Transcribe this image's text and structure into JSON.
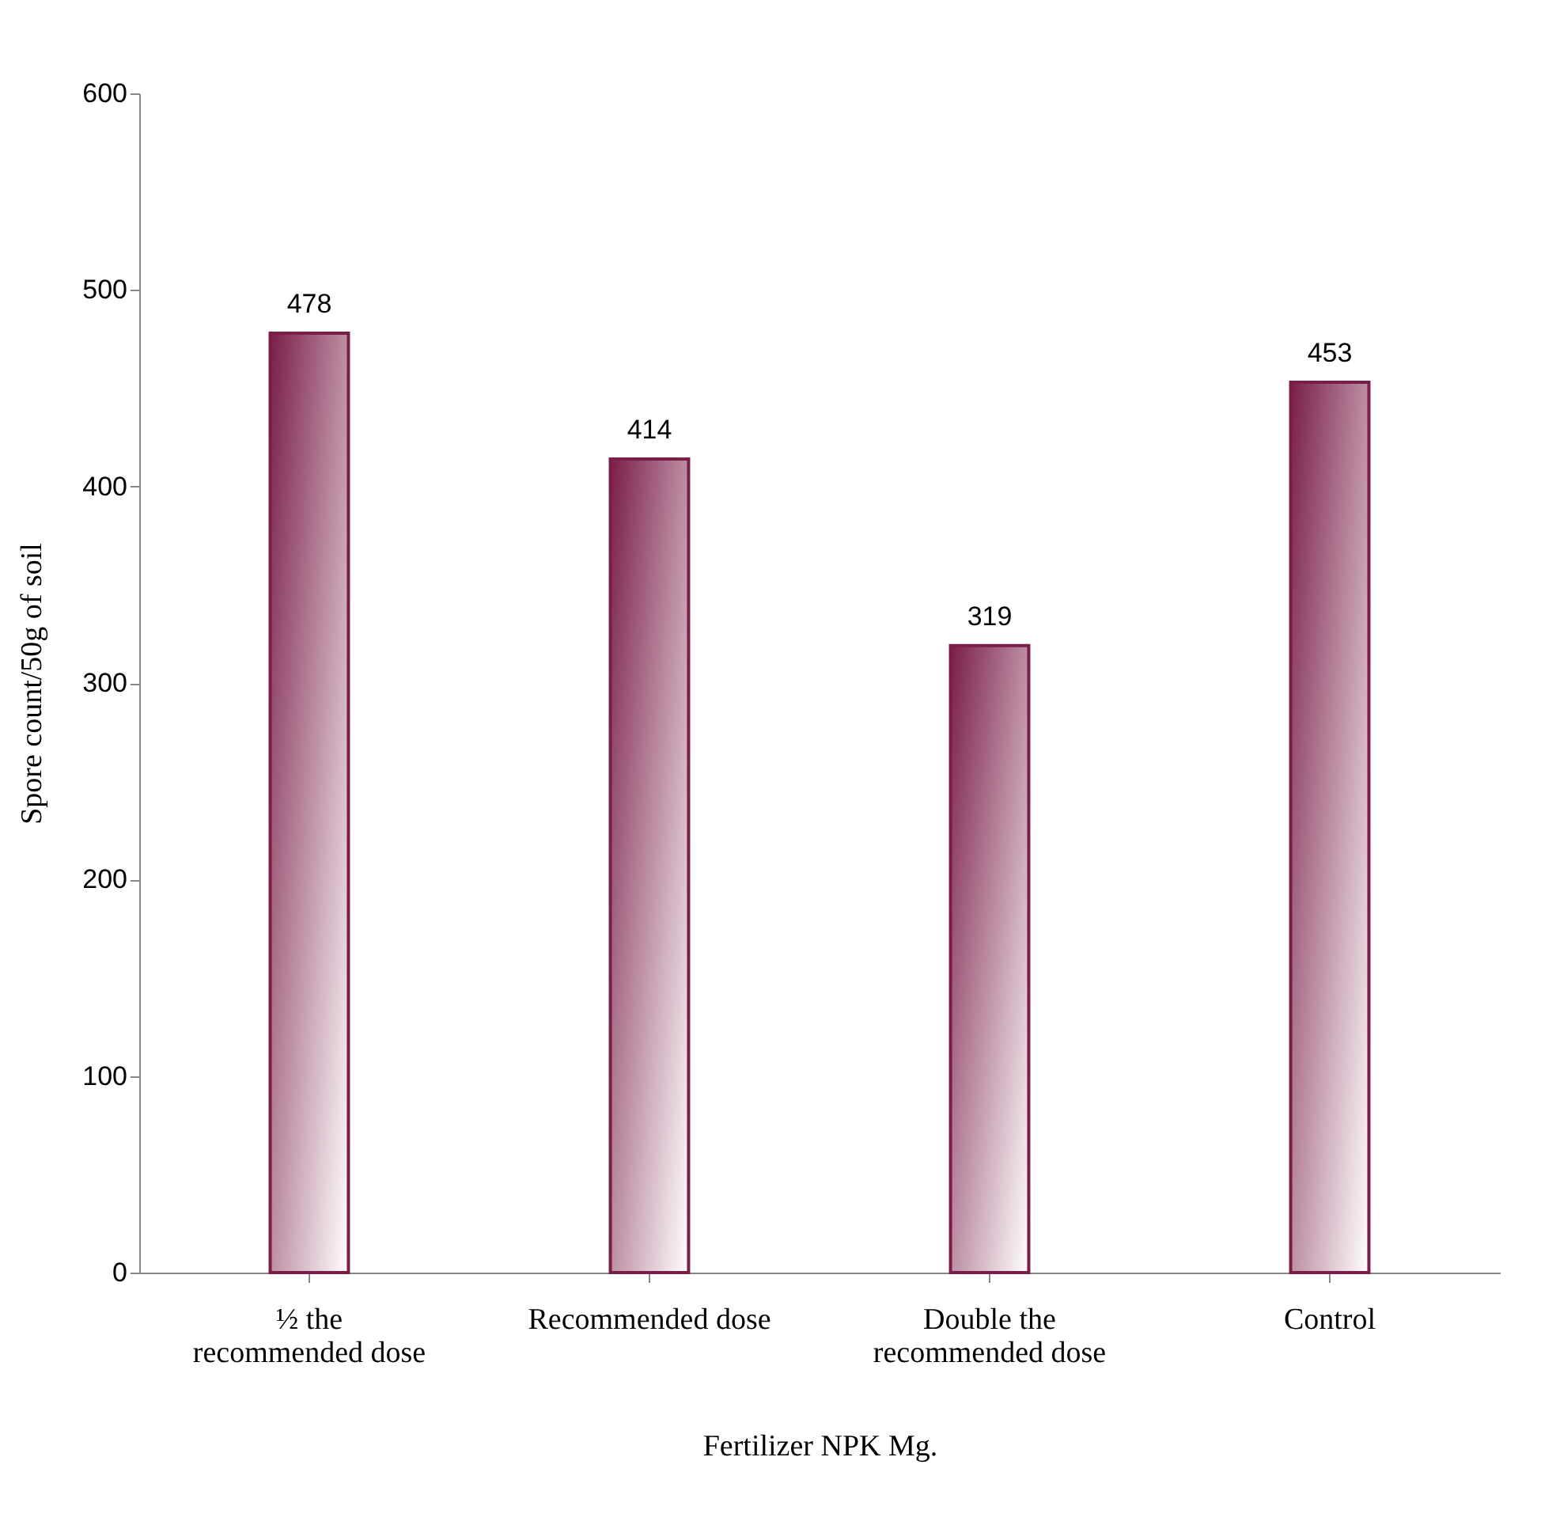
{
  "chart_data": {
    "type": "bar",
    "xlabel": "Fertilizer NPK Mg.",
    "ylabel": "Spore count/50g of soil",
    "categories": [
      "½ the recommended dose",
      "Recommended dose",
      "Double the recommended dose",
      "Control"
    ],
    "values": [
      478,
      414,
      319,
      453
    ],
    "color": "#7a1e48",
    "ylim": [
      0,
      600
    ],
    "yticks": [
      0,
      100,
      200,
      300,
      400,
      500,
      600
    ],
    "grid": false,
    "data_labels": true
  }
}
